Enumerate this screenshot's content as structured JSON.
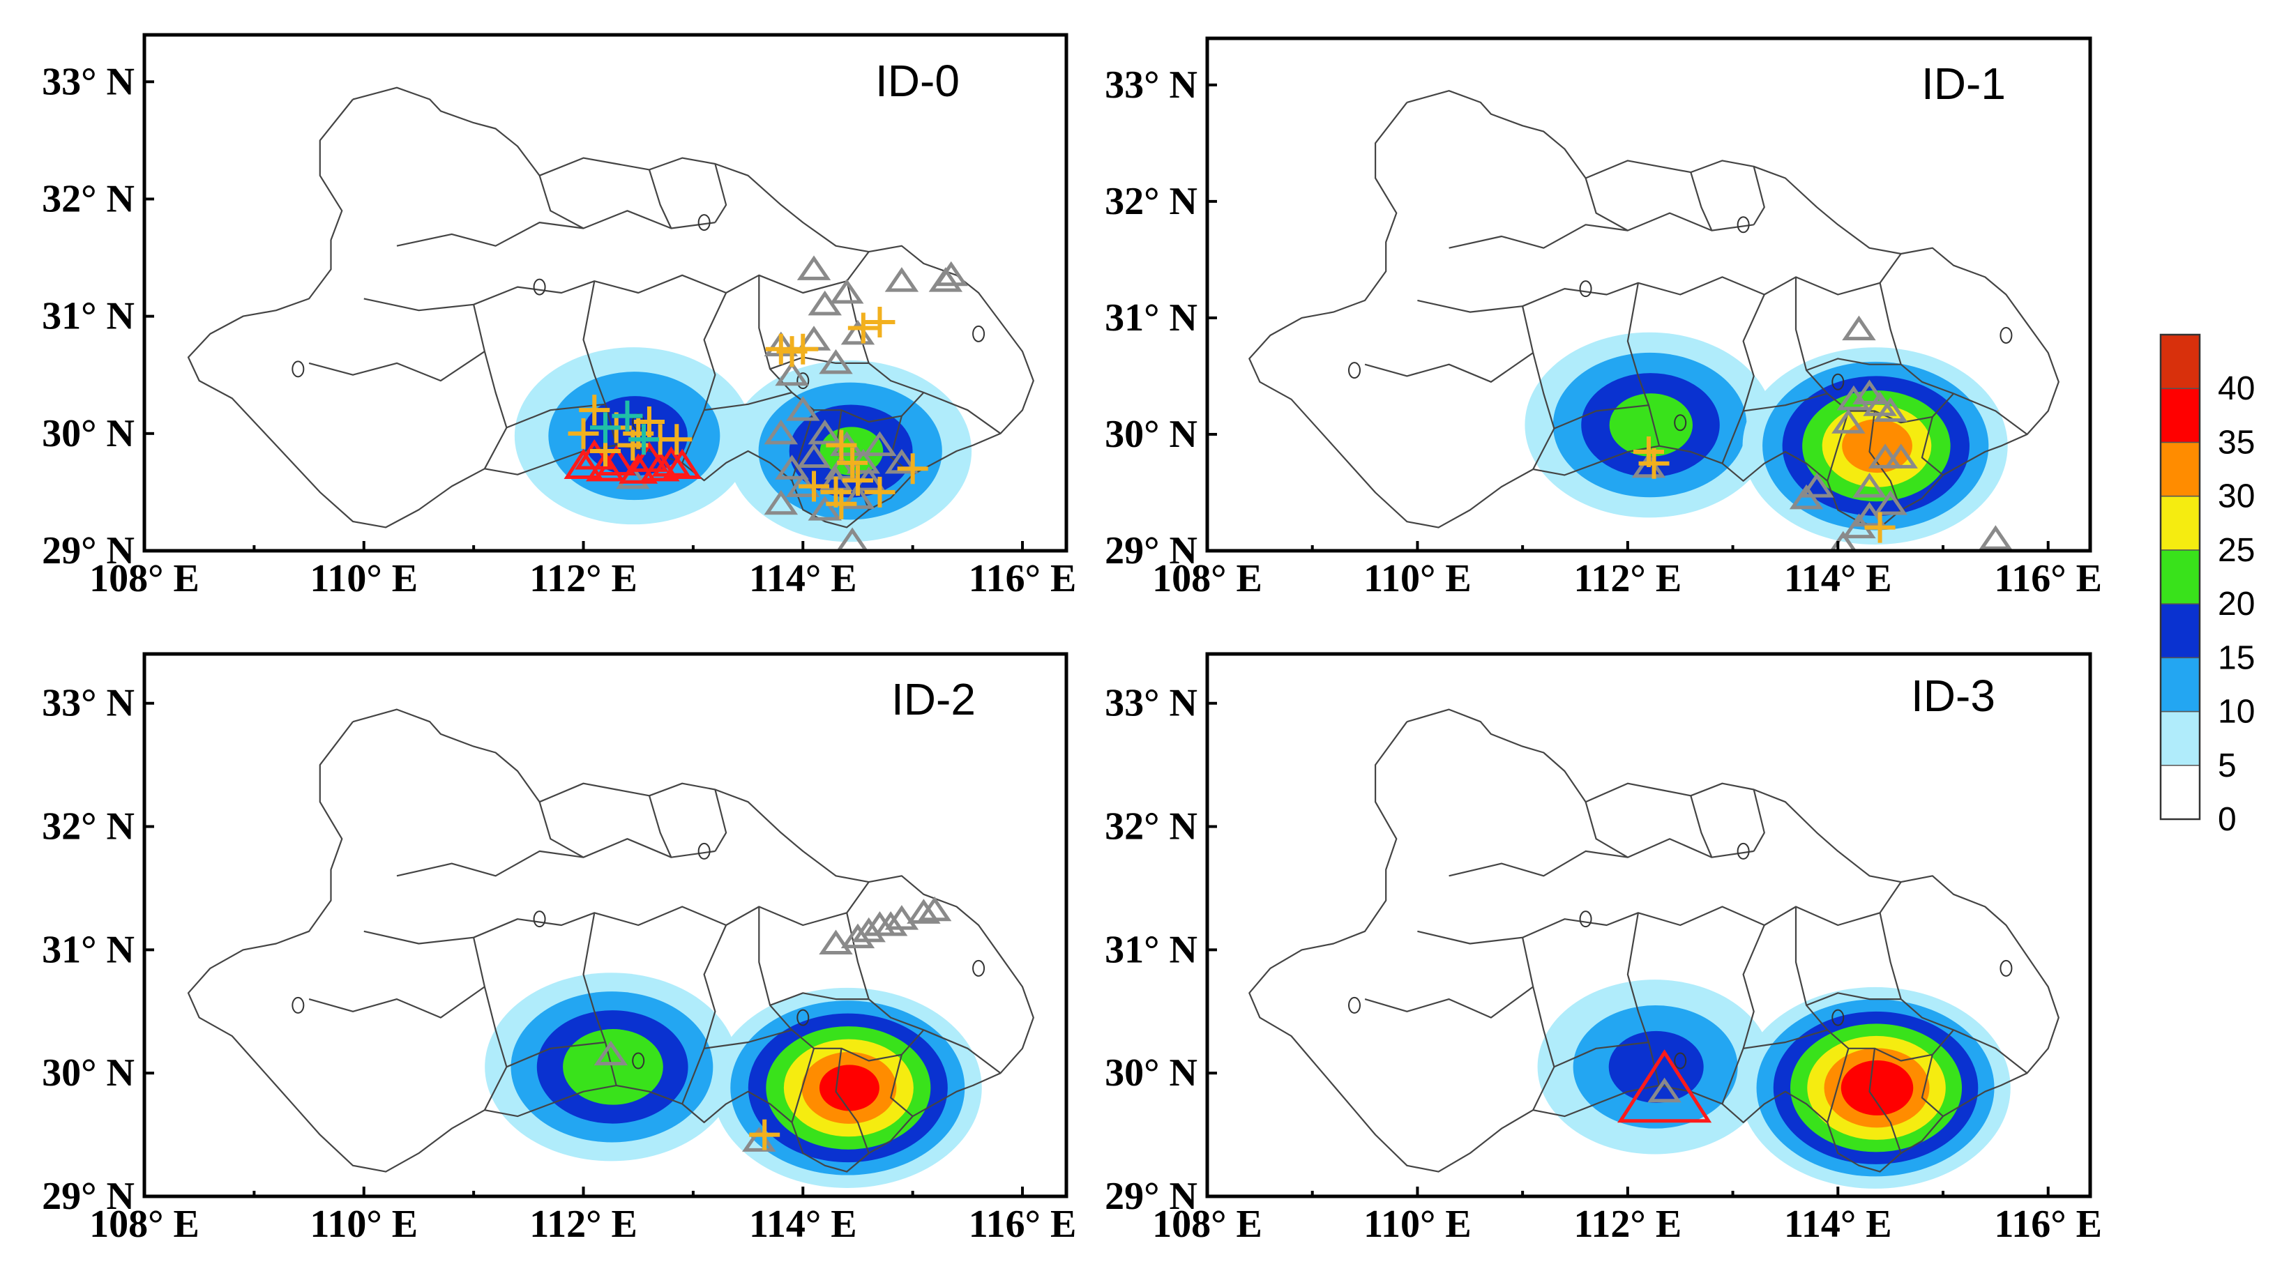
{
  "figure": {
    "panels": [
      {
        "title": "ID-0",
        "hotspots": [
          {
            "lon": 112.45,
            "lat": 29.98,
            "peak": 18
          },
          {
            "lon": 114.42,
            "lat": 29.85,
            "peak": 20
          }
        ],
        "red_triangles": [
          [
            112.3,
            29.75
          ],
          [
            112.0,
            29.72
          ],
          [
            112.2,
            29.7
          ],
          [
            112.5,
            29.68
          ],
          [
            112.7,
            29.7
          ],
          [
            112.9,
            29.72
          ],
          [
            112.1,
            29.8
          ],
          [
            112.6,
            29.78
          ],
          [
            112.8,
            29.74
          ]
        ],
        "gray_triangles": [
          [
            112.45,
            29.62
          ],
          [
            114.1,
            30.8
          ],
          [
            113.8,
            30.75
          ],
          [
            114.5,
            30.85
          ],
          [
            114.2,
            31.1
          ],
          [
            114.4,
            31.2
          ],
          [
            114.1,
            31.4
          ],
          [
            114.9,
            31.3
          ],
          [
            115.3,
            31.3
          ],
          [
            115.35,
            31.35
          ],
          [
            114.3,
            30.6
          ],
          [
            113.9,
            30.5
          ],
          [
            114.0,
            30.2
          ],
          [
            113.8,
            30.0
          ],
          [
            114.2,
            30.0
          ],
          [
            114.4,
            29.9
          ],
          [
            114.1,
            29.8
          ],
          [
            113.9,
            29.7
          ],
          [
            114.3,
            29.6
          ],
          [
            114.6,
            29.6
          ],
          [
            114.5,
            29.45
          ],
          [
            114.2,
            29.35
          ],
          [
            113.8,
            29.4
          ],
          [
            114.7,
            29.9
          ],
          [
            114.9,
            29.75
          ],
          [
            114.45,
            29.08
          ],
          [
            114.35,
            29.7
          ],
          [
            114.55,
            29.75
          ],
          [
            114.0,
            29.55
          ]
        ],
        "crosses": [
          [
            112.1,
            30.2
          ],
          [
            112.0,
            30.0
          ],
          [
            112.3,
            30.05
          ],
          [
            112.5,
            30.0
          ],
          [
            112.7,
            29.95
          ],
          [
            112.2,
            29.85
          ],
          [
            112.45,
            29.9
          ],
          [
            112.6,
            30.1
          ],
          [
            112.85,
            29.95
          ],
          [
            113.8,
            30.72
          ],
          [
            113.9,
            30.7
          ],
          [
            114.0,
            30.72
          ],
          [
            114.7,
            30.95
          ],
          [
            114.55,
            30.9
          ],
          [
            114.35,
            29.9
          ],
          [
            114.45,
            29.75
          ],
          [
            114.3,
            29.5
          ],
          [
            114.1,
            29.55
          ],
          [
            114.7,
            29.5
          ],
          [
            115.0,
            29.7
          ],
          [
            114.5,
            29.6
          ],
          [
            114.35,
            29.4
          ]
        ],
        "crosses_teal": [
          [
            112.4,
            30.15
          ],
          [
            112.2,
            30.05
          ],
          [
            112.55,
            29.95
          ]
        ]
      },
      {
        "title": "ID-1",
        "hotspots": [
          {
            "lon": 112.2,
            "lat": 30.08,
            "peak": 22
          },
          {
            "lon": 114.35,
            "lat": 29.9,
            "peak": 32
          }
        ],
        "red_triangles": [],
        "gray_triangles": [
          [
            112.2,
            29.72
          ],
          [
            114.2,
            30.9
          ],
          [
            114.15,
            30.3
          ],
          [
            114.3,
            30.35
          ],
          [
            114.4,
            30.25
          ],
          [
            114.5,
            30.2
          ],
          [
            114.1,
            30.1
          ],
          [
            114.6,
            29.8
          ],
          [
            114.3,
            29.55
          ],
          [
            114.5,
            29.4
          ],
          [
            114.3,
            29.3
          ],
          [
            114.2,
            29.2
          ],
          [
            114.05,
            29.05
          ],
          [
            113.8,
            29.55
          ],
          [
            113.7,
            29.45
          ],
          [
            115.5,
            29.1
          ],
          [
            114.45,
            29.8
          ]
        ],
        "crosses": [
          [
            112.2,
            29.85
          ],
          [
            112.25,
            29.75
          ],
          [
            114.4,
            29.2
          ]
        ],
        "crosses_teal": []
      },
      {
        "title": "ID-2",
        "hotspots": [
          {
            "lon": 112.25,
            "lat": 30.05,
            "peak": 24
          },
          {
            "lon": 114.4,
            "lat": 29.88,
            "peak": 36
          }
        ],
        "red_triangles": [],
        "gray_triangles": [
          [
            112.25,
            30.15
          ],
          [
            113.6,
            29.45
          ],
          [
            114.3,
            31.05
          ],
          [
            114.5,
            31.1
          ],
          [
            114.7,
            31.2
          ],
          [
            114.9,
            31.25
          ],
          [
            115.1,
            31.3
          ],
          [
            115.2,
            31.32
          ],
          [
            114.6,
            31.15
          ],
          [
            114.8,
            31.2
          ]
        ],
        "crosses": [
          [
            113.65,
            29.5
          ]
        ],
        "crosses_teal": []
      },
      {
        "title": "ID-3",
        "hotspots": [
          {
            "lon": 112.25,
            "lat": 30.05,
            "peak": 17
          },
          {
            "lon": 114.35,
            "lat": 29.88,
            "peak": 38
          }
        ],
        "red_triangles": [
          [
            112.35,
            29.85
          ]
        ],
        "gray_triangles": [
          [
            112.35,
            29.85
          ]
        ],
        "crosses": [],
        "crosses_teal": []
      }
    ],
    "x_ticks": [
      "108° E",
      "110° E",
      "112° E",
      "114° E",
      "116° E"
    ],
    "y_ticks": [
      "29° N",
      "30° N",
      "31° N",
      "32° N",
      "33° N"
    ],
    "x_tick_values": [
      108,
      110,
      112,
      114,
      116
    ],
    "y_tick_values": [
      29,
      30,
      31,
      32,
      33
    ],
    "lon_range": [
      108,
      116.4
    ],
    "lat_range": [
      29,
      33.4
    ],
    "colorbar": {
      "labels": [
        "0",
        "5",
        "10",
        "15",
        "20",
        "25",
        "30",
        "35",
        "40"
      ],
      "levels": [
        0,
        5,
        10,
        15,
        20,
        25,
        30,
        35,
        40,
        45
      ],
      "colors": [
        "#ffffff",
        "#b0ecfb",
        "#23a6f2",
        "#0a32d0",
        "#39e21b",
        "#f5ec10",
        "#ff8c00",
        "#ff0000",
        "#d8300c"
      ]
    },
    "marker_colors": {
      "red_triangle": "#ff1a1a",
      "gray_triangle": "#8a8a8a",
      "cross": "#f2b01e",
      "cross_teal": "#1fbfa8"
    }
  }
}
